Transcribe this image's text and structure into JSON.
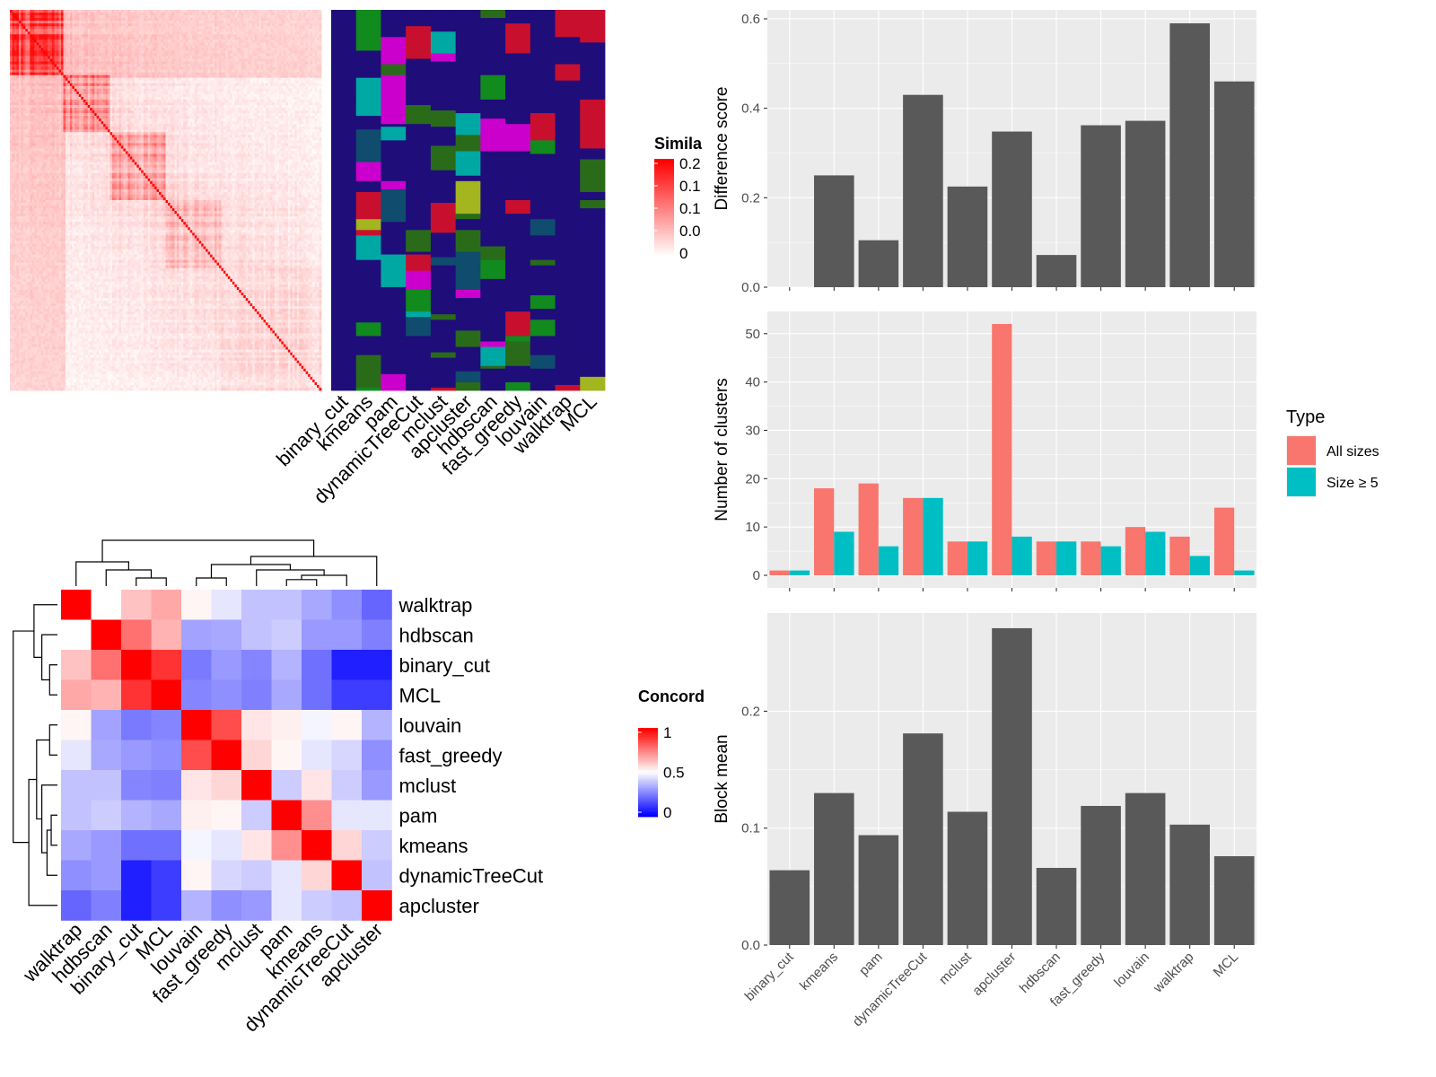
{
  "chart_data": [
    {
      "id": "similarity_heatmap",
      "type": "heatmap",
      "description_of_values": "Consensus similarity matrix over items, strong diagonal with block structure",
      "legend": {
        "title": "Simila",
        "ticks": [
          "0.2",
          "0.1",
          "0.1",
          "0.0",
          "0"
        ],
        "colors": [
          "#ff0000",
          "#ffffff"
        ]
      },
      "n_items": 140
    },
    {
      "id": "cluster_assignment_heatmap",
      "type": "heatmap",
      "columns": [
        "binary_cut",
        "kmeans",
        "pam",
        "dynamicTreeCut",
        "mclust",
        "apcluster",
        "hdbscan",
        "fast_greedy",
        "louvain",
        "walktrap",
        "MCL"
      ],
      "palette": [
        "#1f0d7a",
        "#118a1e",
        "#00a8a3",
        "#cc00cc",
        "#a3b51f",
        "#c8102e",
        "#2a6b1a",
        "#0f4c6e"
      ]
    },
    {
      "id": "concordance_heatmap",
      "type": "heatmap",
      "legend": {
        "title": "Concord",
        "ticks": [
          "1",
          "0.5",
          "0"
        ],
        "colors": [
          "#ff0000",
          "#ffffff",
          "#0000ff"
        ]
      },
      "rows": [
        "walktrap",
        "hdbscan",
        "binary_cut",
        "MCL",
        "louvain",
        "fast_greedy",
        "mclust",
        "pam",
        "kmeans",
        "dynamicTreeCut",
        "apcluster"
      ],
      "cols": [
        "walktrap",
        "hdbscan",
        "binary_cut",
        "MCL",
        "louvain",
        "fast_greedy",
        "mclust",
        "pam",
        "kmeans",
        "dynamicTreeCut",
        "apcluster"
      ],
      "values": [
        [
          1.0,
          0.5,
          0.62,
          0.67,
          0.52,
          0.45,
          0.38,
          0.38,
          0.33,
          0.28,
          0.2
        ],
        [
          0.5,
          1.0,
          0.78,
          0.65,
          0.32,
          0.33,
          0.38,
          0.4,
          0.3,
          0.3,
          0.25
        ],
        [
          0.62,
          0.78,
          1.0,
          0.9,
          0.24,
          0.3,
          0.26,
          0.35,
          0.22,
          0.06,
          0.06
        ],
        [
          0.67,
          0.65,
          0.9,
          1.0,
          0.26,
          0.28,
          0.25,
          0.33,
          0.22,
          0.12,
          0.12
        ],
        [
          0.52,
          0.32,
          0.24,
          0.26,
          1.0,
          0.85,
          0.55,
          0.53,
          0.48,
          0.52,
          0.35
        ],
        [
          0.45,
          0.33,
          0.3,
          0.28,
          0.85,
          1.0,
          0.58,
          0.52,
          0.45,
          0.42,
          0.28
        ],
        [
          0.38,
          0.38,
          0.26,
          0.25,
          0.55,
          0.58,
          1.0,
          0.4,
          0.55,
          0.4,
          0.3
        ],
        [
          0.38,
          0.4,
          0.35,
          0.33,
          0.53,
          0.52,
          0.4,
          1.0,
          0.72,
          0.45,
          0.45
        ],
        [
          0.33,
          0.3,
          0.22,
          0.22,
          0.48,
          0.45,
          0.55,
          0.72,
          1.0,
          0.58,
          0.4
        ],
        [
          0.28,
          0.3,
          0.06,
          0.12,
          0.52,
          0.42,
          0.4,
          0.45,
          0.58,
          1.0,
          0.38
        ],
        [
          0.2,
          0.25,
          0.06,
          0.12,
          0.35,
          0.28,
          0.3,
          0.45,
          0.4,
          0.38,
          1.0
        ]
      ]
    },
    {
      "id": "difference_score",
      "type": "bar",
      "categories": [
        "binary_cut",
        "kmeans",
        "pam",
        "dynamicTreeCut",
        "mclust",
        "apcluster",
        "hdbscan",
        "fast_greedy",
        "louvain",
        "walktrap",
        "MCL"
      ],
      "values": [
        0.0,
        0.25,
        0.105,
        0.43,
        0.225,
        0.348,
        0.072,
        0.362,
        0.372,
        0.59,
        0.46
      ],
      "ylabel": "Difference score",
      "ylim": [
        0,
        0.62
      ],
      "yticks": [
        0.0,
        0.2,
        0.4,
        0.6
      ],
      "ytick_labels": [
        "0.0",
        "0.2",
        "0.4",
        "0.6"
      ],
      "bar_color": "#595959"
    },
    {
      "id": "number_of_clusters",
      "type": "bar",
      "categories": [
        "binary_cut",
        "kmeans",
        "pam",
        "dynamicTreeCut",
        "mclust",
        "apcluster",
        "hdbscan",
        "fast_greedy",
        "louvain",
        "walktrap",
        "MCL"
      ],
      "series": [
        {
          "name": "All sizes",
          "color": "#f8766d",
          "values": [
            1,
            18,
            19,
            16,
            7,
            52,
            7,
            7,
            10,
            8,
            14
          ]
        },
        {
          "name": "Size ≥ 5",
          "color": "#00bfc4",
          "values": [
            1,
            9,
            6,
            16,
            7,
            8,
            7,
            6,
            9,
            4,
            1
          ]
        }
      ],
      "ylabel": "Number of clusters",
      "ylim": [
        -2.6,
        54.6
      ],
      "yticks": [
        0,
        10,
        20,
        30,
        40,
        50
      ],
      "ytick_labels": [
        "0",
        "10",
        "20",
        "30",
        "40",
        "50"
      ],
      "legend": {
        "title": "Type",
        "placement": "right"
      }
    },
    {
      "id": "block_mean",
      "type": "bar",
      "categories": [
        "binary_cut",
        "kmeans",
        "pam",
        "dynamicTreeCut",
        "mclust",
        "apcluster",
        "hdbscan",
        "fast_greedy",
        "louvain",
        "walktrap",
        "MCL"
      ],
      "values": [
        0.064,
        0.13,
        0.094,
        0.181,
        0.114,
        0.271,
        0.066,
        0.119,
        0.13,
        0.103,
        0.076
      ],
      "ylabel": "Block mean",
      "ylim": [
        0,
        0.284
      ],
      "yticks": [
        0.0,
        0.1,
        0.2
      ],
      "ytick_labels": [
        "0.0",
        "0.1",
        "0.2"
      ],
      "bar_color": "#595959"
    }
  ]
}
